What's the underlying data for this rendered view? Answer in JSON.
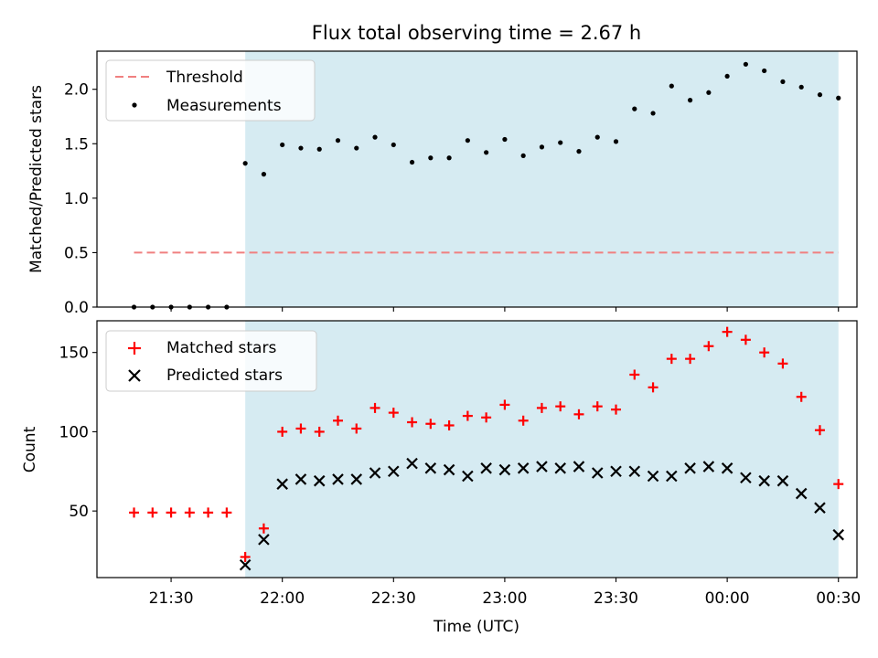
{
  "figure": {
    "title": "Flux total observing time = 2.67 h",
    "xlabel": "Time (UTC)"
  },
  "colors": {
    "shade": "#add8e6",
    "threshold": "#f08080",
    "measurements": "#000000",
    "matched": "#ff0000",
    "predicted": "#000000"
  },
  "chart_data": [
    {
      "type": "scatter",
      "ylabel": "Matched/Predicted stars",
      "ylim": [
        0,
        2.35
      ],
      "yticks": [
        0.0,
        0.5,
        1.0,
        1.5,
        2.0
      ],
      "ytick_labels": [
        "0.0",
        "0.5",
        "1.0",
        "1.5",
        "2.0"
      ],
      "legend": {
        "placement": "upper-left",
        "entries": [
          "Threshold",
          "Measurements"
        ]
      },
      "shaded_span": {
        "x_start": "21:50",
        "x_end": "00:30"
      },
      "threshold": {
        "name": "Threshold",
        "value": 0.5,
        "x_start": "21:20",
        "x_end": "00:30",
        "style": "dashed"
      },
      "series": [
        {
          "name": "Measurements",
          "x": [
            "21:20",
            "21:25",
            "21:30",
            "21:35",
            "21:40",
            "21:45",
            "21:50",
            "21:55",
            "22:00",
            "22:05",
            "22:10",
            "22:15",
            "22:20",
            "22:25",
            "22:30",
            "22:35",
            "22:40",
            "22:45",
            "22:50",
            "22:55",
            "23:00",
            "23:05",
            "23:10",
            "23:15",
            "23:20",
            "23:25",
            "23:30",
            "23:35",
            "23:40",
            "23:45",
            "23:50",
            "23:55",
            "00:00",
            "00:05",
            "00:10",
            "00:15",
            "00:20",
            "00:25",
            "00:30"
          ],
          "y": [
            0,
            0,
            0,
            0,
            0,
            0,
            1.32,
            1.22,
            1.49,
            1.46,
            1.45,
            1.53,
            1.46,
            1.56,
            1.49,
            1.33,
            1.37,
            1.37,
            1.53,
            1.42,
            1.54,
            1.39,
            1.47,
            1.51,
            1.43,
            1.56,
            1.52,
            1.82,
            1.78,
            2.03,
            1.9,
            1.97,
            2.12,
            2.23,
            2.17,
            2.07,
            2.02,
            1.95,
            1.92
          ]
        }
      ]
    },
    {
      "type": "scatter",
      "ylabel": "Count",
      "ylim": [
        8,
        170
      ],
      "yticks": [
        50,
        100,
        150
      ],
      "ytick_labels": [
        "50",
        "100",
        "150"
      ],
      "legend": {
        "placement": "upper-left",
        "entries": [
          "Matched stars",
          "Predicted stars"
        ]
      },
      "shaded_span": {
        "x_start": "21:50",
        "x_end": "00:30"
      },
      "x": [
        "21:20",
        "21:25",
        "21:30",
        "21:35",
        "21:40",
        "21:45",
        "21:50",
        "21:55",
        "22:00",
        "22:05",
        "22:10",
        "22:15",
        "22:20",
        "22:25",
        "22:30",
        "22:35",
        "22:40",
        "22:45",
        "22:50",
        "22:55",
        "23:00",
        "23:05",
        "23:10",
        "23:15",
        "23:20",
        "23:25",
        "23:30",
        "23:35",
        "23:40",
        "23:45",
        "23:50",
        "23:55",
        "00:00",
        "00:05",
        "00:10",
        "00:15",
        "00:20",
        "00:25",
        "00:30"
      ],
      "series": [
        {
          "name": "Matched stars",
          "marker": "plus",
          "y": [
            49,
            49,
            49,
            49,
            49,
            49,
            21,
            39,
            100,
            102,
            100,
            107,
            102,
            115,
            112,
            106,
            105,
            104,
            110,
            109,
            117,
            107,
            115,
            116,
            111,
            116,
            114,
            136,
            128,
            146,
            146,
            154,
            163,
            158,
            150,
            143,
            122,
            101,
            67
          ]
        },
        {
          "name": "Predicted stars",
          "marker": "x",
          "indices_from": 6,
          "y": [
            16,
            32,
            67,
            70,
            69,
            70,
            70,
            74,
            75,
            80,
            77,
            76,
            72,
            77,
            76,
            77,
            78,
            77,
            78,
            74,
            75,
            75,
            72,
            72,
            77,
            78,
            77,
            71,
            69,
            69,
            61,
            52,
            35
          ]
        }
      ],
      "xticks": [
        "21:30",
        "22:00",
        "22:30",
        "23:00",
        "23:30",
        "00:00",
        "00:30"
      ]
    }
  ]
}
